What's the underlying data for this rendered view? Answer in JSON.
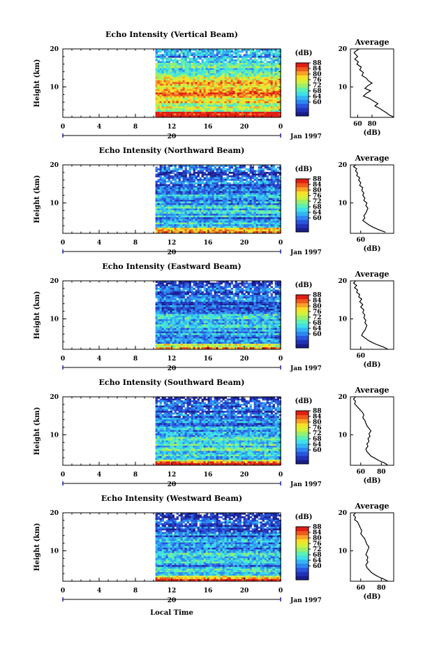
{
  "palette": [
    "#1a1e8c",
    "#2233b8",
    "#2a55dd",
    "#2f86f0",
    "#33b5f2",
    "#3fe0e8",
    "#5ff0b0",
    "#9bf06a",
    "#d6f03a",
    "#f6e02a",
    "#f7a226",
    "#f05a1d",
    "#e01e14"
  ],
  "chart_data": [
    {
      "type": "heatmap",
      "title": "Echo Intensity (Vertical Beam)",
      "ylabel": "Height (km)",
      "ylim": [
        2,
        20
      ],
      "xlim": [
        0,
        24
      ],
      "data_start_hour": 10.2,
      "colorbar": {
        "label": "(dB)",
        "range": [
          50,
          88
        ],
        "ticks": [
          "88",
          "84",
          "80",
          "76",
          "72",
          "68",
          "64",
          "60"
        ]
      },
      "profile": {
        "title": "Average",
        "xlabel": "(dB)",
        "xlim": [
          50,
          110
        ],
        "xticks": [
          "60",
          "80"
        ],
        "points": [
          [
            62,
            20
          ],
          [
            58,
            19.5
          ],
          [
            55,
            19
          ],
          [
            57,
            18.6
          ],
          [
            60,
            18
          ],
          [
            56,
            17.3
          ],
          [
            61,
            16.6
          ],
          [
            59,
            16
          ],
          [
            65,
            15.2
          ],
          [
            63,
            14.5
          ],
          [
            68,
            13.8
          ],
          [
            66,
            13
          ],
          [
            72,
            12.3
          ],
          [
            75,
            11.6
          ],
          [
            80,
            11
          ],
          [
            74,
            10.3
          ],
          [
            70,
            9.6
          ],
          [
            78,
            9
          ],
          [
            72,
            8.3
          ],
          [
            68,
            7.6
          ],
          [
            76,
            7
          ],
          [
            82,
            6.3
          ],
          [
            88,
            5.6
          ],
          [
            84,
            5
          ],
          [
            90,
            4.4
          ],
          [
            95,
            3.8
          ],
          [
            100,
            3.2
          ],
          [
            104,
            2.6
          ],
          [
            110,
            2.1
          ]
        ]
      },
      "band_profile": [
        0.55,
        0.6,
        0.62,
        0.66,
        0.65,
        0.7,
        0.72,
        0.75,
        0.8,
        0.78,
        0.76,
        0.72,
        0.7,
        0.68,
        0.62,
        0.58,
        0.52,
        0.45,
        0.4,
        0.38,
        0.35,
        0.33,
        0.35,
        0.3
      ]
    },
    {
      "type": "heatmap",
      "title": "Echo Intensity (Northward Beam)",
      "ylabel": "Height (km)",
      "ylim": [
        2,
        20
      ],
      "xlim": [
        0,
        24
      ],
      "data_start_hour": 10.2,
      "colorbar": {
        "label": "(dB)",
        "range": [
          50,
          88
        ],
        "ticks": [
          "88",
          "84",
          "80",
          "76",
          "72",
          "68",
          "64",
          "60"
        ]
      },
      "profile": {
        "title": "Average",
        "xlabel": "(dB)",
        "xlim": [
          50,
          92
        ],
        "xticks": [
          "60"
        ],
        "points": [
          [
            55,
            20
          ],
          [
            53,
            19.5
          ],
          [
            56,
            19
          ],
          [
            55,
            18.4
          ],
          [
            57,
            17.8
          ],
          [
            56,
            17.2
          ],
          [
            59,
            16.6
          ],
          [
            58,
            16
          ],
          [
            60,
            15.3
          ],
          [
            59,
            14.6
          ],
          [
            62,
            14
          ],
          [
            61,
            13.3
          ],
          [
            63,
            12.6
          ],
          [
            62,
            12
          ],
          [
            64,
            11.3
          ],
          [
            63,
            10.6
          ],
          [
            66,
            10
          ],
          [
            65,
            9.3
          ],
          [
            67,
            8.6
          ],
          [
            66,
            8
          ],
          [
            65,
            7.3
          ],
          [
            63,
            6.6
          ],
          [
            64,
            6
          ],
          [
            62,
            5.4
          ],
          [
            65,
            4.8
          ],
          [
            68,
            4.2
          ],
          [
            72,
            3.6
          ],
          [
            77,
            3
          ],
          [
            84,
            2.3
          ]
        ]
      },
      "band_profile": [
        0.3,
        0.35,
        0.35,
        0.33,
        0.32,
        0.3,
        0.32,
        0.35,
        0.38,
        0.36,
        0.35,
        0.33,
        0.32,
        0.3,
        0.28,
        0.26,
        0.25,
        0.22,
        0.2,
        0.18,
        0.16,
        0.16,
        0.15,
        0.15
      ]
    },
    {
      "type": "heatmap",
      "title": "Echo Intensity (Eastward Beam)",
      "ylabel": "Height (km)",
      "ylim": [
        2,
        20
      ],
      "xlim": [
        0,
        24
      ],
      "data_start_hour": 10.2,
      "colorbar": {
        "label": "(dB)",
        "range": [
          50,
          88
        ],
        "ticks": [
          "88",
          "84",
          "80",
          "76",
          "72",
          "68",
          "64",
          "60"
        ]
      },
      "profile": {
        "title": "Average",
        "xlabel": "(dB)",
        "xlim": [
          50,
          92
        ],
        "xticks": [
          "60"
        ],
        "points": [
          [
            55,
            20
          ],
          [
            53,
            19.4
          ],
          [
            56,
            18.8
          ],
          [
            54,
            18.2
          ],
          [
            57,
            17.6
          ],
          [
            56,
            17
          ],
          [
            59,
            16.4
          ],
          [
            58,
            15.8
          ],
          [
            61,
            15.2
          ],
          [
            59,
            14.5
          ],
          [
            62,
            13.8
          ],
          [
            60,
            13.1
          ],
          [
            63,
            12.4
          ],
          [
            62,
            11.7
          ],
          [
            64,
            11
          ],
          [
            63,
            10.3
          ],
          [
            65,
            9.6
          ],
          [
            64,
            9
          ],
          [
            66,
            8.3
          ],
          [
            65,
            7.6
          ],
          [
            64,
            7
          ],
          [
            62,
            6.3
          ],
          [
            61,
            5.6
          ],
          [
            64,
            5
          ],
          [
            67,
            4.4
          ],
          [
            71,
            3.8
          ],
          [
            76,
            3.2
          ],
          [
            82,
            2.6
          ],
          [
            86,
            2.1
          ]
        ]
      },
      "band_profile": [
        0.3,
        0.32,
        0.34,
        0.33,
        0.32,
        0.31,
        0.33,
        0.35,
        0.37,
        0.36,
        0.34,
        0.32,
        0.31,
        0.29,
        0.27,
        0.25,
        0.24,
        0.22,
        0.2,
        0.18,
        0.17,
        0.16,
        0.15,
        0.15
      ]
    },
    {
      "type": "heatmap",
      "title": "Echo Intensity (Southward Beam)",
      "ylabel": "Height (km)",
      "ylim": [
        2,
        20
      ],
      "xlim": [
        0,
        24
      ],
      "data_start_hour": 10.2,
      "colorbar": {
        "label": "(dB)",
        "range": [
          50,
          88
        ],
        "ticks": [
          "88",
          "84",
          "80",
          "76",
          "72",
          "68",
          "64",
          "60"
        ]
      },
      "profile": {
        "title": "Average",
        "xlabel": "(dB)",
        "xlim": [
          50,
          92
        ],
        "xticks": [
          "60",
          "80"
        ],
        "points": [
          [
            55,
            20
          ],
          [
            53,
            19.4
          ],
          [
            55,
            18.8
          ],
          [
            54,
            18.2
          ],
          [
            56,
            17.6
          ],
          [
            58,
            17
          ],
          [
            60,
            16.4
          ],
          [
            62,
            15.8
          ],
          [
            63,
            15.2
          ],
          [
            62,
            14.5
          ],
          [
            64,
            13.8
          ],
          [
            65,
            13.1
          ],
          [
            66,
            12.4
          ],
          [
            68,
            11.7
          ],
          [
            70,
            11
          ],
          [
            68,
            10.3
          ],
          [
            69,
            9.6
          ],
          [
            67,
            9
          ],
          [
            68,
            8.3
          ],
          [
            66,
            7.6
          ],
          [
            67,
            7
          ],
          [
            65,
            6.3
          ],
          [
            66,
            5.6
          ],
          [
            68,
            5
          ],
          [
            70,
            4.4
          ],
          [
            74,
            3.8
          ],
          [
            78,
            3.2
          ],
          [
            83,
            2.6
          ],
          [
            86,
            2.1
          ]
        ]
      },
      "band_profile": [
        0.35,
        0.37,
        0.4,
        0.42,
        0.44,
        0.46,
        0.44,
        0.42,
        0.4,
        0.38,
        0.37,
        0.36,
        0.34,
        0.32,
        0.3,
        0.28,
        0.26,
        0.24,
        0.22,
        0.2,
        0.19,
        0.18,
        0.17,
        0.16
      ]
    },
    {
      "type": "heatmap",
      "title": "Echo Intensity (Westward Beam)",
      "ylabel": "Height (km)",
      "ylim": [
        2,
        20
      ],
      "xlim": [
        0,
        24
      ],
      "data_start_hour": 10.2,
      "colorbar": {
        "label": "(dB)",
        "range": [
          50,
          88
        ],
        "ticks": [
          "88",
          "84",
          "80",
          "76",
          "72",
          "68",
          "64",
          "60"
        ]
      },
      "profile": {
        "title": "Average",
        "xlabel": "(dB)",
        "xlim": [
          50,
          92
        ],
        "xticks": [
          "60",
          "80"
        ],
        "points": [
          [
            55,
            20
          ],
          [
            53,
            19.4
          ],
          [
            55,
            18.8
          ],
          [
            54,
            18.2
          ],
          [
            57,
            17.6
          ],
          [
            58,
            17
          ],
          [
            59,
            16.4
          ],
          [
            60,
            15.8
          ],
          [
            61,
            15.2
          ],
          [
            60,
            14.5
          ],
          [
            62,
            13.8
          ],
          [
            64,
            13.1
          ],
          [
            65,
            12.4
          ],
          [
            66,
            11.7
          ],
          [
            68,
            11
          ],
          [
            67,
            10.3
          ],
          [
            66,
            9.6
          ],
          [
            65,
            9
          ],
          [
            67,
            8.3
          ],
          [
            66,
            7.6
          ],
          [
            67,
            7
          ],
          [
            65,
            6.3
          ],
          [
            66,
            5.6
          ],
          [
            68,
            5
          ],
          [
            70,
            4.4
          ],
          [
            73,
            3.8
          ],
          [
            77,
            3.2
          ],
          [
            82,
            2.6
          ],
          [
            86,
            2.1
          ]
        ]
      },
      "band_profile": [
        0.32,
        0.34,
        0.36,
        0.35,
        0.34,
        0.33,
        0.35,
        0.37,
        0.39,
        0.37,
        0.35,
        0.33,
        0.32,
        0.3,
        0.28,
        0.26,
        0.25,
        0.23,
        0.21,
        0.19,
        0.18,
        0.17,
        0.16,
        0.15
      ]
    }
  ],
  "shared_axis": {
    "xticks": [
      "0",
      "4",
      "8",
      "12",
      "16",
      "20",
      "0"
    ],
    "date_day": "20",
    "date_label": "Jan 1997",
    "yticks": [
      "20",
      "10"
    ],
    "xlabel": "Local Time"
  }
}
